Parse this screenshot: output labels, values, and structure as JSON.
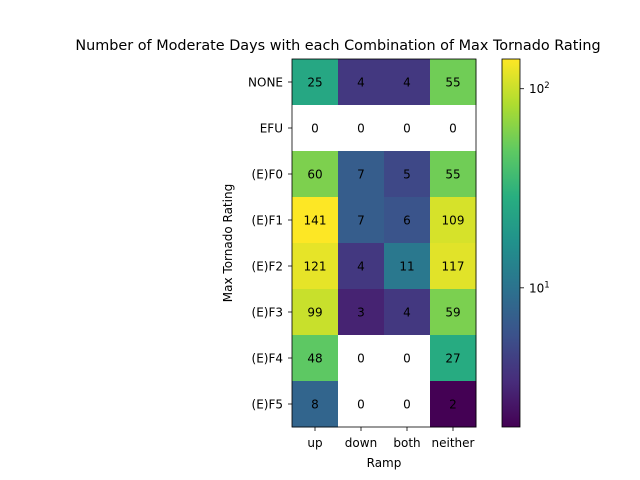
{
  "chart_data": {
    "type": "heatmap",
    "title": "Number of Moderate Days with each Combination of Max Tornado Rating",
    "xlabel": "Ramp",
    "ylabel": "Max Tornado Rating",
    "x_categories": [
      "up",
      "down",
      "both",
      "neither"
    ],
    "y_categories": [
      "NONE",
      "EFU",
      "(E)F0",
      "(E)F1",
      "(E)F2",
      "(E)F3",
      "(E)F4",
      "(E)F5"
    ],
    "values": [
      [
        25,
        4,
        4,
        55
      ],
      [
        0,
        0,
        0,
        0
      ],
      [
        60,
        7,
        5,
        55
      ],
      [
        141,
        7,
        6,
        109
      ],
      [
        121,
        4,
        11,
        117
      ],
      [
        99,
        3,
        4,
        59
      ],
      [
        48,
        0,
        0,
        27
      ],
      [
        8,
        0,
        0,
        2
      ]
    ],
    "color_scale": "log",
    "colormap": "viridis",
    "zero_color": "#ffffff",
    "vmin": 2,
    "vmax": 141,
    "colorbar": {
      "ticks": [
        {
          "value": 10,
          "label": "10",
          "exp": "1"
        },
        {
          "value": 100,
          "label": "10",
          "exp": "2"
        }
      ]
    }
  }
}
